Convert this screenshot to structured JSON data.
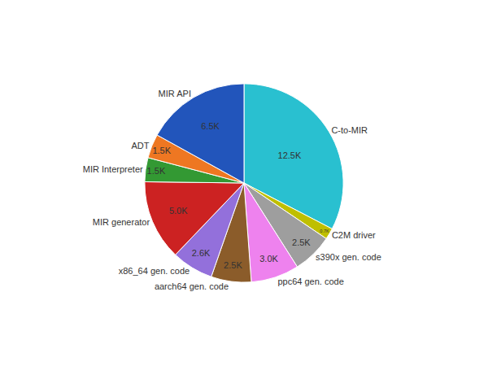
{
  "chart_data": {
    "type": "pie",
    "categories": [
      "C-to-MIR",
      "C2M driver",
      "s390x gen. code",
      "ppc64 gen. code",
      "aarch64 gen. code",
      "x86_64 gen. code",
      "MIR generator",
      "MIR Interpreter",
      "ADT",
      "MIR API"
    ],
    "values": [
      12.5,
      0.7,
      2.5,
      3.0,
      2.5,
      2.6,
      5.0,
      1.5,
      1.5,
      6.5
    ],
    "value_labels": [
      "12.5K",
      "0.7K",
      "2.5K",
      "3.0K",
      "2.5K",
      "2.6K",
      "5.0K",
      "1.5K",
      "1.5K",
      "6.5K"
    ],
    "colors": [
      "#29C0D0",
      "#BFBF00",
      "#9E9E9E",
      "#EE82EE",
      "#8B5C2A",
      "#9370DB",
      "#CC2222",
      "#339933",
      "#EE7722",
      "#2255BB"
    ],
    "data_labels": true
  }
}
